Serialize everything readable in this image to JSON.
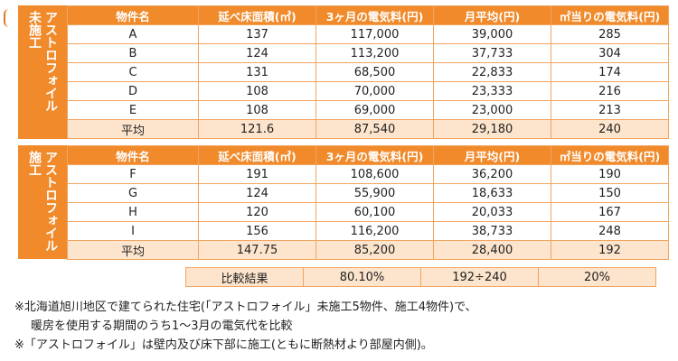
{
  "headers": [
    "物件名",
    "延べ床面積(㎡)",
    "3ヶ月の電気料(円)",
    "月平均(円)",
    "㎡当りの電気料(円)"
  ],
  "table1": {
    "side_label_status": "未施工",
    "side_label_product": "アストロフォイル",
    "rows": [
      [
        "A",
        "137",
        "117,000",
        "39,000",
        "285"
      ],
      [
        "B",
        "124",
        "113,200",
        "37,733",
        "304"
      ],
      [
        "C",
        "131",
        "68,500",
        "22,833",
        "174"
      ],
      [
        "D",
        "108",
        "70,000",
        "23,333",
        "216"
      ],
      [
        "E",
        "108",
        "69,000",
        "23,000",
        "213"
      ],
      [
        "平均",
        "121.6",
        "87,540",
        "29,180",
        "240"
      ]
    ]
  },
  "table2": {
    "side_label_status": "施工",
    "side_label_product": "アストロフォイル",
    "rows": [
      [
        "F",
        "191",
        "108,600",
        "36,200",
        "190"
      ],
      [
        "G",
        "124",
        "55,900",
        "18,633",
        "150"
      ],
      [
        "H",
        "120",
        "60,100",
        "20,033",
        "167"
      ],
      [
        "I",
        "156",
        "116,200",
        "38,733",
        "248"
      ],
      [
        "平均",
        "147.75",
        "85,200",
        "28,400",
        "192"
      ]
    ]
  },
  "comparison": [
    "比較結果",
    "80.10%",
    "192÷240",
    "20%"
  ],
  "notes": [
    "※北海道旭川地区で建てられた住宅(「アストロフォイル」未施工5物件、施工4物件)で、",
    "暖房を使用する期間のうち1〜3月の電気代を比較",
    "※「アストロフォイル」は壁内及び床下部に施工(ともに断熱材より部屋内側)。"
  ]
}
